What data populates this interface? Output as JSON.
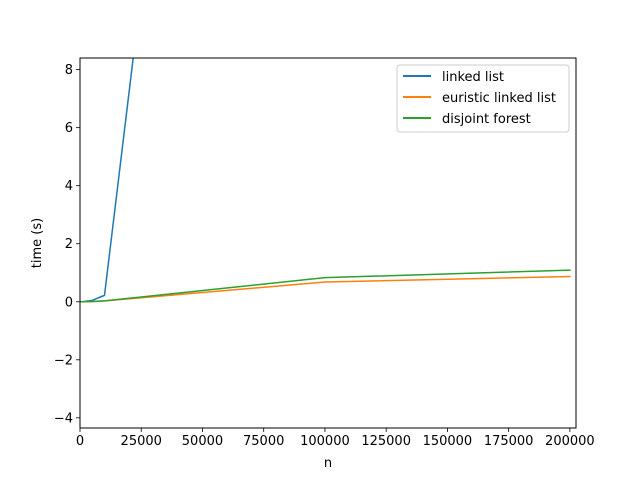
{
  "chart_data": {
    "type": "line",
    "xlabel": "n",
    "ylabel": "time (s)",
    "xlim": [
      0,
      202500
    ],
    "ylim": [
      -4.35,
      8.4
    ],
    "xticks": [
      0,
      25000,
      50000,
      75000,
      100000,
      125000,
      150000,
      175000,
      200000
    ],
    "xtick_labels": [
      "0",
      "25000",
      "50000",
      "75000",
      "100000",
      "125000",
      "150000",
      "175000",
      "200000"
    ],
    "yticks": [
      -4,
      -2,
      0,
      2,
      4,
      6,
      8
    ],
    "ytick_labels": [
      "−4",
      "−2",
      "0",
      "2",
      "4",
      "6",
      "8"
    ],
    "grid": false,
    "legend_position": "top-right",
    "series": [
      {
        "name": "linked list",
        "color": "#1f77b4",
        "x": [
          0,
          1000,
          5000,
          10000,
          22000
        ],
        "y": [
          0.0,
          0.0,
          0.05,
          0.22,
          8.6
        ]
      },
      {
        "name": "euristic linked list",
        "color": "#ff7f0e",
        "x": [
          0,
          1000,
          5000,
          10000,
          100000,
          200000
        ],
        "y": [
          0.0,
          0.0,
          0.01,
          0.03,
          0.68,
          0.87
        ]
      },
      {
        "name": "disjoint forest",
        "color": "#2ca02c",
        "x": [
          0,
          1000,
          5000,
          10000,
          100000,
          200000
        ],
        "y": [
          0.0,
          0.0,
          0.01,
          0.03,
          0.83,
          1.09
        ]
      }
    ]
  }
}
